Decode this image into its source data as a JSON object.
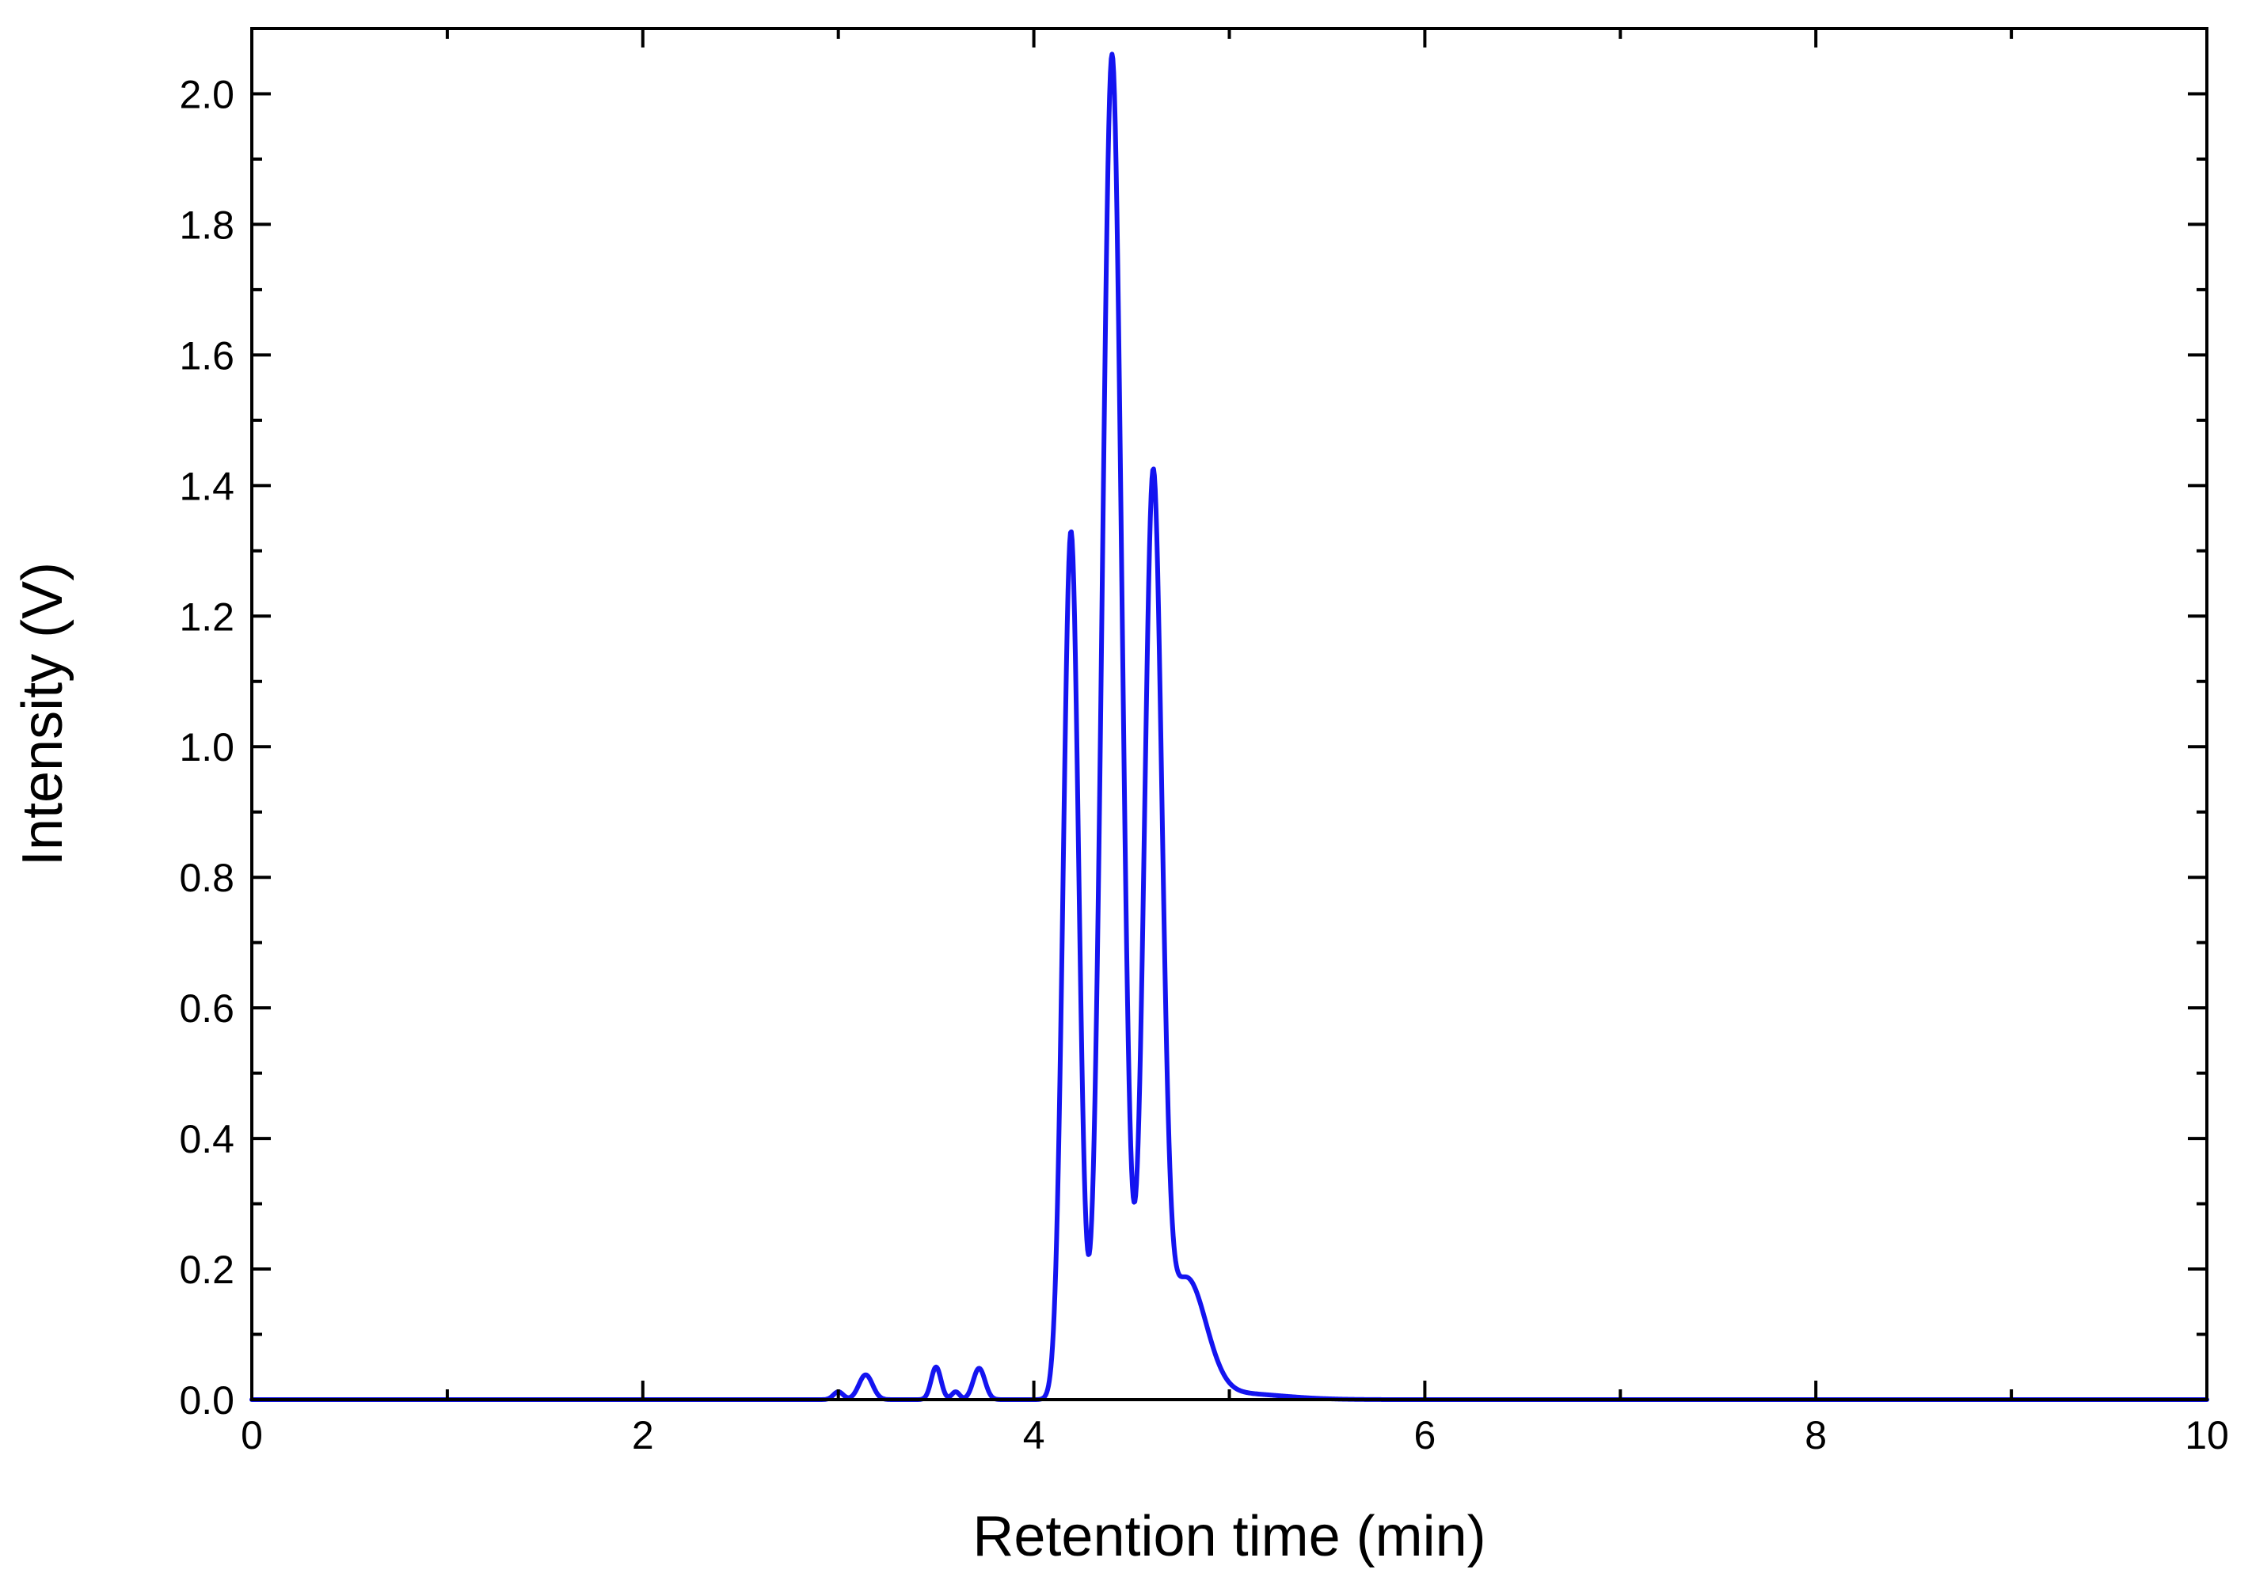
{
  "chart_data": {
    "type": "line",
    "title": "",
    "xlabel": "Retention time (min)",
    "ylabel": "Intensity (V)",
    "xlim": [
      0,
      10
    ],
    "ylim": [
      0,
      2.1
    ],
    "x_major_ticks": [
      0,
      2,
      4,
      6,
      8,
      10
    ],
    "x_tick_labels": [
      "0",
      "2",
      "4",
      "6",
      "8",
      "10"
    ],
    "x_minor_step": 1,
    "y_major_ticks": [
      0.0,
      0.2,
      0.4,
      0.6,
      0.8,
      1.0,
      1.2,
      1.4,
      1.6,
      1.8,
      2.0
    ],
    "y_tick_labels": [
      "0.0",
      "0.2",
      "0.4",
      "0.6",
      "0.8",
      "1.0",
      "1.2",
      "1.4",
      "1.6",
      "1.8",
      "2.0"
    ],
    "y_minor_step": 0.1,
    "grid": false,
    "legend": "none",
    "series": [
      {
        "color": "#1414f0",
        "peaks": [
          {
            "x": 3.0,
            "height": 0.012,
            "width": 0.025
          },
          {
            "x": 3.14,
            "height": 0.038,
            "width": 0.035
          },
          {
            "x": 3.5,
            "height": 0.05,
            "width": 0.025
          },
          {
            "x": 3.6,
            "height": 0.012,
            "width": 0.02
          },
          {
            "x": 3.72,
            "height": 0.048,
            "width": 0.03
          },
          {
            "x": 4.19,
            "height": 1.33,
            "width": 0.04
          },
          {
            "x": 4.4,
            "height": 2.06,
            "width": 0.05
          },
          {
            "x": 4.61,
            "height": 1.38,
            "width": 0.045
          },
          {
            "x": 4.78,
            "height": 0.18,
            "width": 0.1
          },
          {
            "x": 5.0,
            "height": 0.01,
            "width": 0.25
          }
        ]
      }
    ]
  }
}
